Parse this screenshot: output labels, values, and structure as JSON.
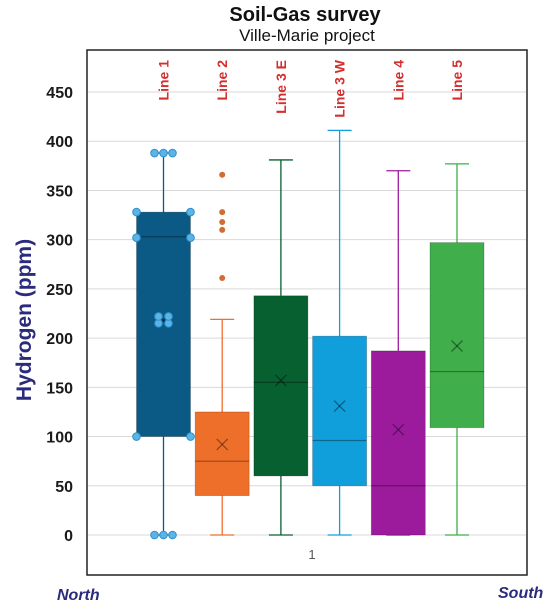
{
  "chart_data": {
    "type": "box",
    "title": "Soil-Gas survey",
    "subtitle": "Ville-Marie project",
    "ylabel": "Hydrogen (ppm)",
    "ylim": [
      0,
      470
    ],
    "yticks": [
      0,
      50,
      100,
      150,
      200,
      250,
      300,
      350,
      400,
      450
    ],
    "grid": true,
    "category": "1",
    "direction_left": "North",
    "direction_right": "South",
    "series": [
      {
        "name": "Line 1",
        "color": "#0b5a86",
        "outlier_color": "#5ab4e5",
        "min": 0,
        "q1": 100,
        "median": 303,
        "q3": 328,
        "max": 388,
        "mean": 218,
        "outliers": [
          0,
          0,
          0,
          100,
          100,
          302,
          302,
          328,
          328,
          388,
          388,
          388,
          215,
          215,
          222,
          222
        ]
      },
      {
        "name": "Line 2",
        "color": "#ee6f2a",
        "outlier_color": "#cf6d34",
        "min": 0,
        "q1": 40,
        "median": 75,
        "q3": 125,
        "max": 219,
        "mean": 92,
        "outliers": [
          261,
          310,
          318,
          328,
          366
        ]
      },
      {
        "name": "Line 3 E",
        "color": "#07602f",
        "outlier_color": "#07602f",
        "min": 0,
        "q1": 60,
        "median": 155,
        "q3": 243,
        "max": 381,
        "mean": 157,
        "outliers": []
      },
      {
        "name": "Line 3 W",
        "color": "#119fdc",
        "outlier_color": "#119fdc",
        "min": 0,
        "q1": 50,
        "median": 96,
        "q3": 202,
        "max": 411,
        "mean": 131,
        "outliers": []
      },
      {
        "name": "Line 4",
        "color": "#9c1b9c",
        "outlier_color": "#9c1b9c",
        "min": 0,
        "q1": 0,
        "median": 50,
        "q3": 187,
        "max": 370,
        "mean": 107,
        "outliers": []
      },
      {
        "name": "Line 5",
        "color": "#3fae4b",
        "outlier_color": "#3fae4b",
        "min": 0,
        "q1": 109,
        "median": 166,
        "q3": 297,
        "max": 377,
        "mean": 192,
        "outliers": []
      }
    ]
  }
}
